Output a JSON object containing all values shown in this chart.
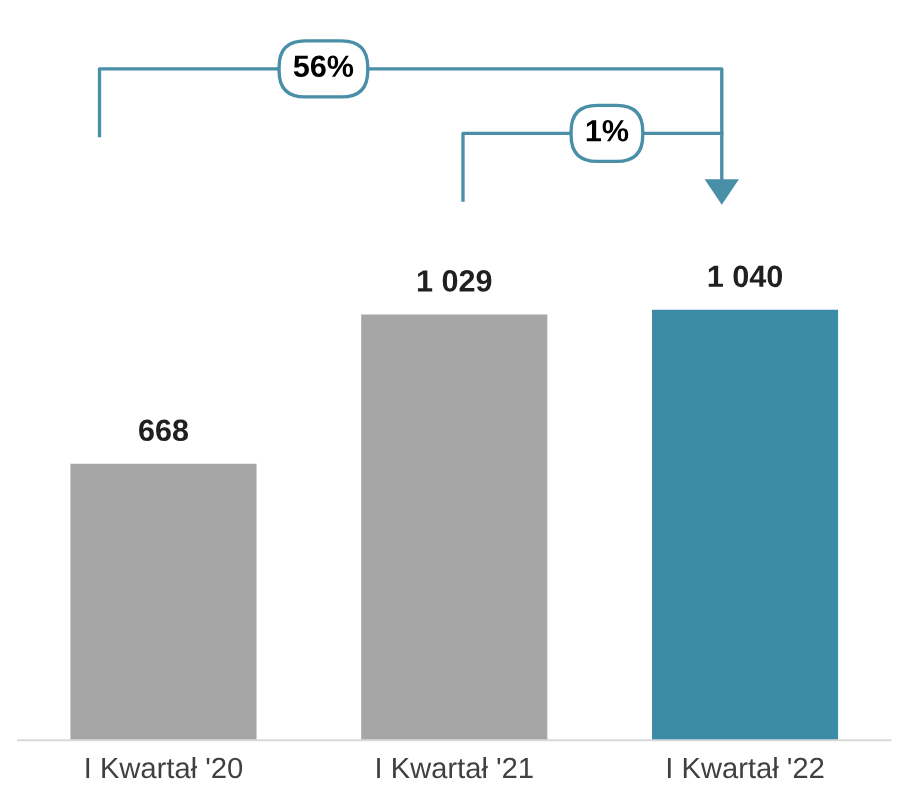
{
  "chart_data": {
    "type": "bar",
    "categories": [
      "I Kwartał '20",
      "I Kwartał '21",
      "I Kwartał '22"
    ],
    "values": [
      668,
      1029,
      1040
    ],
    "colors": [
      "#a6a6a6",
      "#a6a6a6",
      "#3d8ca6"
    ],
    "value_labels": [
      "668",
      "1 029",
      "1 040"
    ],
    "annotations": [
      "56%",
      "1%"
    ],
    "grid": false,
    "legend": false
  }
}
